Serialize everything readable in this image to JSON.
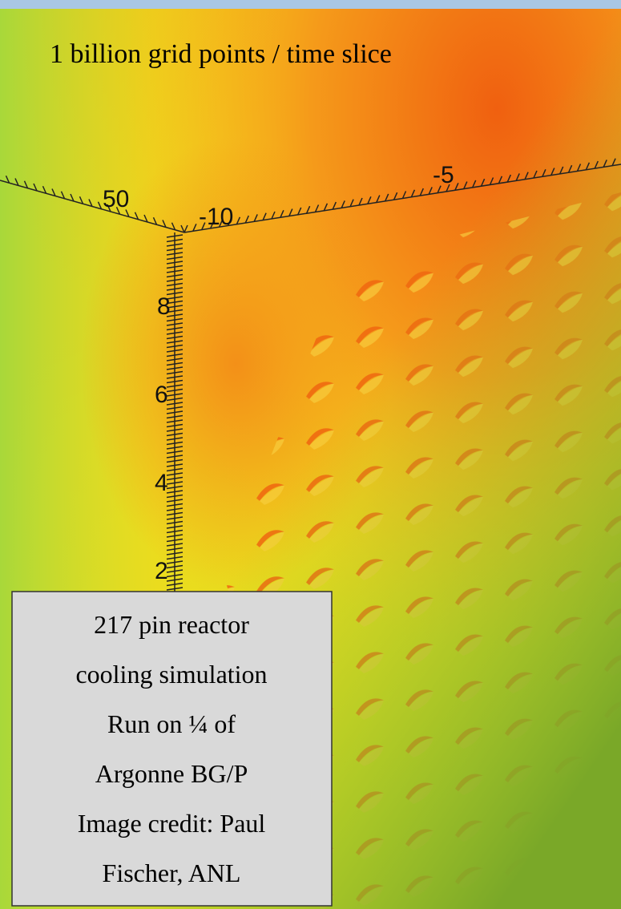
{
  "header": {
    "title": "1 billion grid points / time slice"
  },
  "axis_labels": {
    "horizontal": [
      "50",
      "-10",
      "-5"
    ],
    "vertical": [
      "8",
      "6",
      "4",
      "2"
    ]
  },
  "caption_box": {
    "lines": [
      "217 pin reactor",
      "cooling simulation",
      "Run on ¼ of",
      "Argonne BG/P",
      "Image credit: Paul",
      "Fischer, ANL"
    ]
  }
}
